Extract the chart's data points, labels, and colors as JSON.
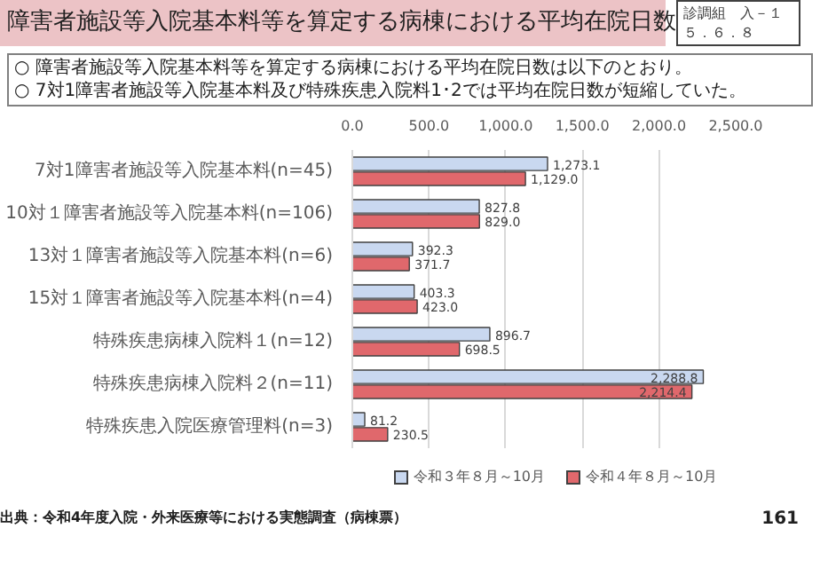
{
  "chart_data": {
    "type": "bar",
    "orientation": "horizontal",
    "title": "障害者施設等入院基本料等を算定する病棟における平均在院日数",
    "annotations": [
      "○ 障害者施設等入院基本料等を算定する病棟における平均在院日数は以下のとおり。",
      "○ 7対1障害者施設等入院基本料及び特殊疾患入院料1･2では平均在院日数が短縮していた。",
      "診調組　入－１",
      "５．６．８",
      "出典：令和4年度入院・外来医療等における実態調査（病棟票）",
      "161"
    ],
    "categories": [
      "7対1障害者施設等入院基本料(n=45)",
      "10対１障害者施設等入院基本料(n=106)",
      "13対１障害者施設等入院基本料(n=6)",
      "15対１障害者施設等入院基本料(n=4)",
      "特殊疾患病棟入院料１(n=12)",
      "特殊疾患病棟入院料２(n=11)",
      "特殊疾患入院医療管理料(n=3)"
    ],
    "series": [
      {
        "name": "令和３年８月～10月",
        "color": "#c9d8f0",
        "values": [
          1273.1,
          827.8,
          392.3,
          403.3,
          896.7,
          2288.8,
          81.2
        ],
        "value_labels": [
          "1,273.1",
          "827.8",
          "392.3",
          "403.3",
          "896.7",
          "2,288.8",
          "81.2"
        ]
      },
      {
        "name": "令和４年８月～10月",
        "color": "#e0686c",
        "values": [
          1129.0,
          829.0,
          371.7,
          423.0,
          698.5,
          2214.4,
          230.5
        ],
        "value_labels": [
          "1,129.0",
          "829.0",
          "371.7",
          "423.0",
          "698.5",
          "2,214.4",
          "230.5"
        ]
      }
    ],
    "xlim": [
      0,
      2500
    ],
    "xticks": [
      {
        "value": 0,
        "label": "0.0"
      },
      {
        "value": 500,
        "label": "500.0"
      },
      {
        "value": 1000,
        "label": "1,000.0"
      },
      {
        "value": 1500,
        "label": "1,500.0"
      },
      {
        "value": 2000,
        "label": "2,000.0"
      },
      {
        "value": 2500,
        "label": "2,500.0"
      }
    ],
    "grid": "x",
    "legend": "bottom"
  }
}
